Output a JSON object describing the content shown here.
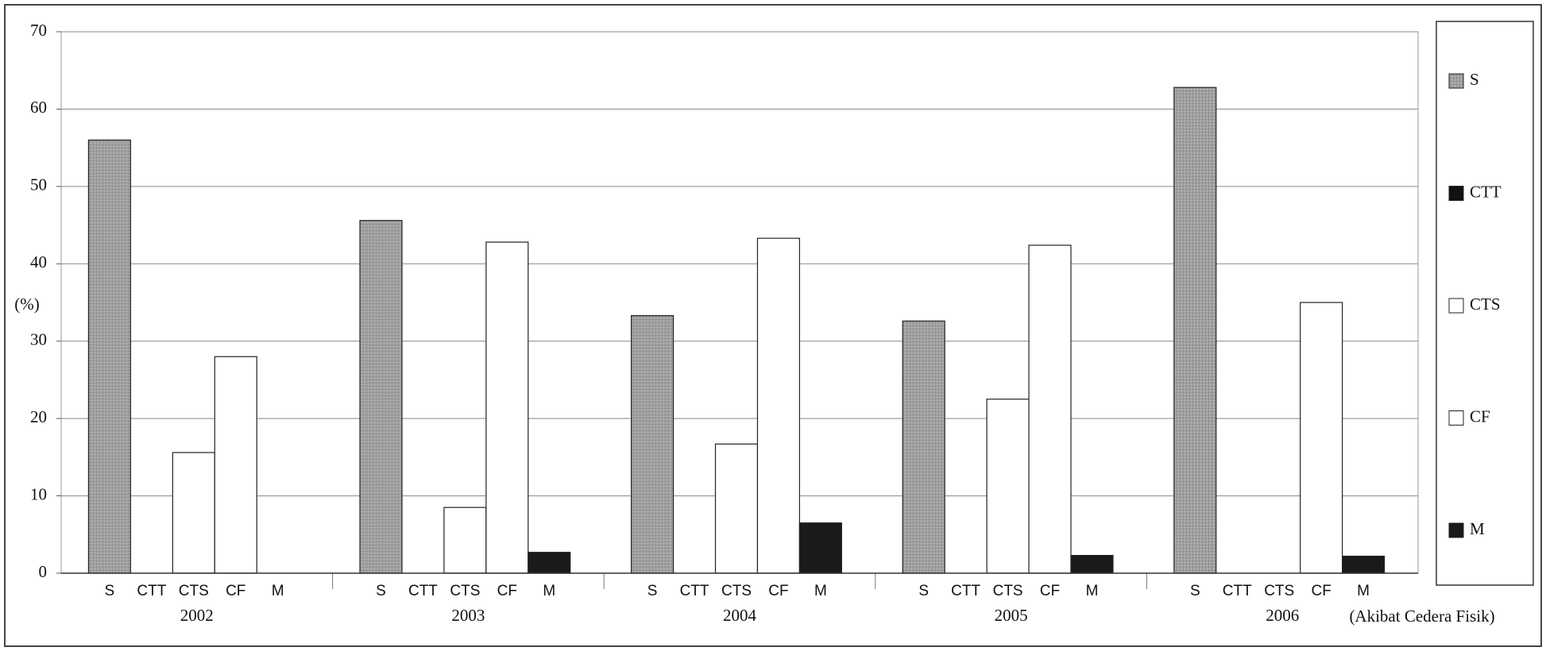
{
  "chart_data": {
    "type": "bar",
    "y_label": "(%)",
    "x_label": "(Akibat Cedera Fisik)",
    "categories": [
      "2002",
      "2003",
      "2004",
      "2005",
      "2006"
    ],
    "series": [
      {
        "name": "S",
        "color": "#a9a9a9",
        "values": [
          56,
          45.6,
          33.3,
          32.6,
          62.8
        ]
      },
      {
        "name": "CTT",
        "color": "#111111",
        "values": [
          0,
          0,
          0,
          0,
          0
        ]
      },
      {
        "name": "CTS",
        "color": "#ffffff",
        "values": [
          15.6,
          8.5,
          16.7,
          22.5,
          0
        ]
      },
      {
        "name": "CF",
        "color": "#ffffff",
        "values": [
          28,
          42.8,
          43.3,
          42.4,
          35
        ]
      },
      {
        "name": "M",
        "color": "#1a1a1a",
        "values": [
          0,
          2.7,
          6.5,
          2.3,
          2.2
        ]
      }
    ],
    "ylim": [
      0,
      70
    ],
    "yticks": [
      0,
      10,
      20,
      30,
      40,
      50,
      60,
      70
    ],
    "grid": true,
    "legend": "right"
  }
}
